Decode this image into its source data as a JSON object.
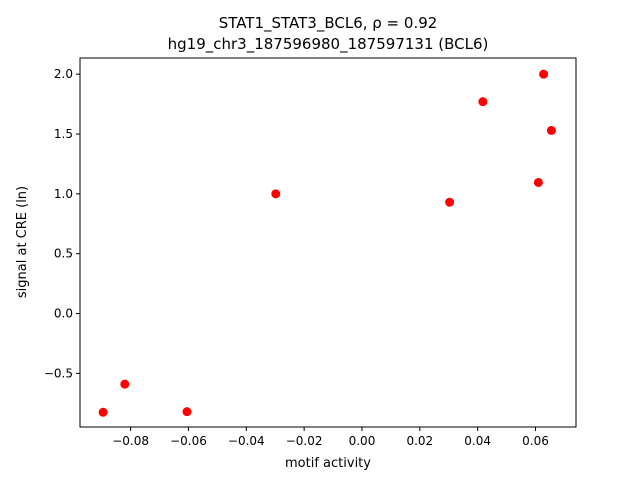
{
  "chart_data": {
    "type": "scatter",
    "title_line1": "STAT1_STAT3_BCL6, ρ = 0.92",
    "title_line2": "hg19_chr3_187596980_187597131 (BCL6)",
    "xlabel": "motif activity",
    "ylabel": "signal at CRE (ln)",
    "xlim": [
      -0.0975,
      0.074
    ],
    "ylim": [
      -0.948,
      2.135
    ],
    "xticks": [
      -0.08,
      -0.06,
      -0.04,
      -0.02,
      0.0,
      0.02,
      0.04,
      0.06
    ],
    "xtick_labels": [
      "−0.08",
      "−0.06",
      "−0.04",
      "−0.02",
      "0.00",
      "0.02",
      "0.04",
      "0.06"
    ],
    "yticks": [
      -0.5,
      0.0,
      0.5,
      1.0,
      1.5,
      2.0
    ],
    "ytick_labels": [
      "−0.5",
      "0.0",
      "0.5",
      "1.0",
      "1.5",
      "2.0"
    ],
    "grid": false,
    "marker_color": "#ff0000",
    "points": [
      {
        "x": -0.0895,
        "y": -0.825
      },
      {
        "x": -0.082,
        "y": -0.59
      },
      {
        "x": -0.0605,
        "y": -0.82
      },
      {
        "x": -0.0298,
        "y": 1.0
      },
      {
        "x": 0.0303,
        "y": 0.93
      },
      {
        "x": 0.0418,
        "y": 1.77
      },
      {
        "x": 0.061,
        "y": 1.095
      },
      {
        "x": 0.0628,
        "y": 2.0
      },
      {
        "x": 0.0655,
        "y": 1.53
      }
    ]
  }
}
